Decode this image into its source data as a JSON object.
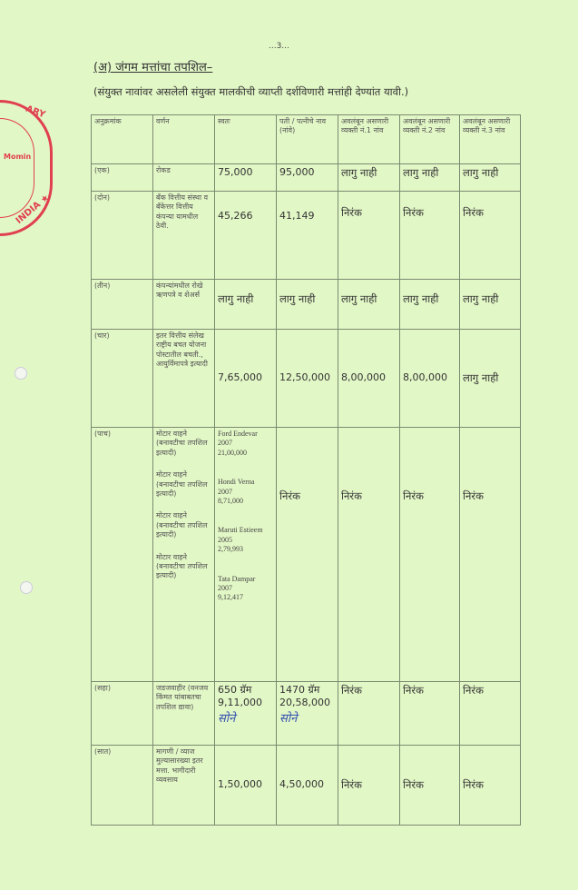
{
  "page_number": "...3...",
  "title": "(अ) जंगम मत्तांचा तपशिल–",
  "subtitle": "(संयुक्त नावांवर असलेली संयुक्त मालकीची व्याप्ती दर्शविणारी मत्तांही देण्यांत यावी.)",
  "stamp": {
    "text": "ARY · Momin · INDIA",
    "color": "#e04050"
  },
  "headers": [
    "अनुक्रमांक",
    "वर्णन",
    "स्वतः",
    "पती / पत्नीचे नाव (नांवे)",
    "अवलंबून असणारी व्यक्ती नं.1 नांव",
    "अवलंबून असणारी व्यक्ती नं.2 नांव",
    "अवलंबून असणारी व्यक्ती नं.3 नांव"
  ],
  "rows": [
    {
      "no": "(एक)",
      "desc": "रोकड",
      "self": "75,000",
      "spouse": "95,000",
      "d1": "लागु नाही",
      "d2": "लागु नाही",
      "d3": "लागु नाही"
    },
    {
      "no": "(दोन)",
      "desc": "बँक वित्तीय संस्था व बँकेत्तर वित्तीय कंपन्या यामधील ठेवी.",
      "self": "45,266",
      "spouse": "41,149",
      "d1": "निरंक",
      "d2": "निरंक",
      "d3": "निरंक"
    },
    {
      "no": "(तीन)",
      "desc": "कंपन्यांमधील रोखे ऋणपत्रे व शेअर्स",
      "self": "लागु नाही",
      "spouse": "लागु नाही",
      "d1": "लागु नाही",
      "d2": "लागु नाही",
      "d3": "लागु नाही"
    },
    {
      "no": "(चार)",
      "desc": "इतर वित्तीय संलेख राष्ट्रीय बचत योजना पोस्टातील बचती., आयुर्विमापत्रे इत्यादी",
      "self": "7,65,000",
      "spouse": "12,50,000",
      "d1": "8,00,000",
      "d2": "8,00,000",
      "d3": "लागु नाही"
    },
    {
      "no": "(पाच)",
      "desc": [
        "मोटार वाहने (बनावटीचा तपशिल इत्यादी)",
        "मोटार वाहने (बनावटीचा तपशिल इत्यादी)",
        "मोटार वाहने (बनावटीचा तपशिल इत्यादी)",
        "मोटार वाहने (बनावटीचा तपशिल इत्यादी)"
      ],
      "self": [
        {
          "model": "Ford Endevar",
          "year": "2007",
          "value": "21,00,000"
        },
        {
          "model": "Hondi Verna",
          "year": "2007",
          "value": "8,71,000"
        },
        {
          "model": "Maruti Estieem",
          "year": "2005",
          "value": "2,79,993"
        },
        {
          "model": "Tata Dampar",
          "year": "2007",
          "value": "9,12,417"
        }
      ],
      "spouse": "निरंक",
      "d1": "निरंक",
      "d2": "निरंक",
      "d3": "निरंक"
    },
    {
      "no": "(सहा)",
      "desc": "जडजवाहीर (वनजव किंमत यांबाबतचा तपशिल द्यावा)",
      "self": "650 ग्रॅम",
      "self_value": "9,11,000",
      "self_note": "सोने",
      "spouse": "1470 ग्रॅम",
      "spouse_value": "20,58,000",
      "spouse_note": "सोने",
      "d1": "निरंक",
      "d2": "निरंक",
      "d3": "निरंक"
    },
    {
      "no": "(सात)",
      "desc": "मागणी / व्याज मुल्यासारख्या इतर मत्ता. भागीदारी व्यवसाय",
      "self": "1,50,000",
      "spouse": "4,50,000",
      "d1": "निरंक",
      "d2": "निरंक",
      "d3": "निरंक"
    }
  ]
}
